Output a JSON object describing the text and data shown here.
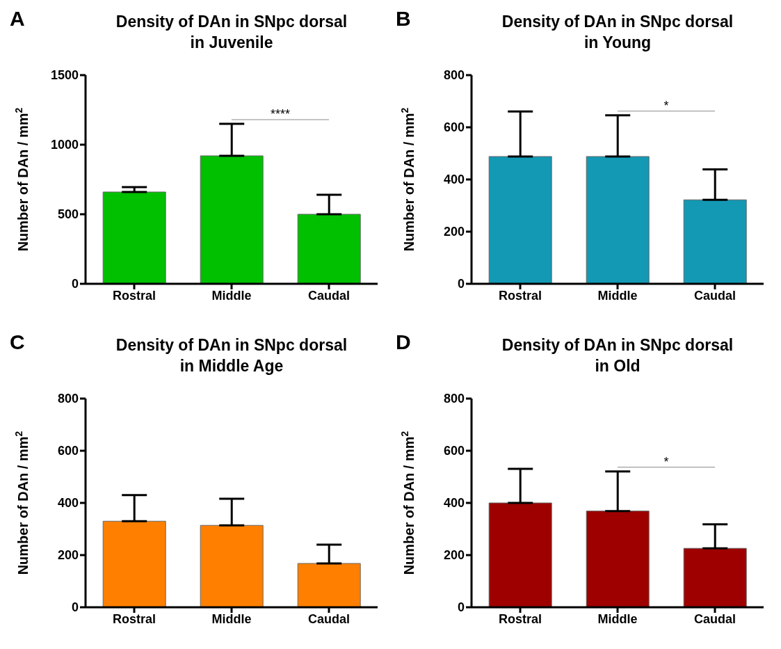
{
  "chart_data": [
    {
      "type": "bar",
      "title": "Density of DAn in SNpc dorsal in Juvenile",
      "ylabel": "Number of DAn / mm$^{2}$",
      "categories": [
        "Rostral",
        "Middle",
        "Caudal"
      ],
      "values": [
        660,
        920,
        500
      ],
      "errors": [
        35,
        230,
        140
      ],
      "color": "#00c000",
      "ylim": [
        0,
        1500
      ],
      "yticks": [
        0,
        500,
        1000,
        1500
      ],
      "annotations": [
        "A",
        "****"
      ]
    },
    {
      "type": "bar",
      "title": "Density of DAn in SNpc dorsal in Young",
      "ylabel": "Number of DAn / mm$^{2}$",
      "categories": [
        "Rostral",
        "Middle",
        "Caudal"
      ],
      "values": [
        488,
        488,
        322
      ],
      "errors": [
        173,
        158,
        117
      ],
      "color": "#1399b4",
      "ylim": [
        0,
        800
      ],
      "yticks": [
        0,
        200,
        400,
        600,
        800
      ],
      "annotations": [
        "B",
        "*"
      ]
    },
    {
      "type": "bar",
      "title": "Density of DAn in SNpc dorsal in Middle Age",
      "ylabel": "Number of DAn / mm$^{2}$",
      "categories": [
        "Rostral",
        "Middle",
        "Caudal"
      ],
      "values": [
        330,
        314,
        168
      ],
      "errors": [
        100,
        102,
        72
      ],
      "color": "#ff8000",
      "ylim": [
        0,
        800
      ],
      "yticks": [
        0,
        200,
        400,
        600,
        800
      ],
      "annotations": [
        "C"
      ]
    },
    {
      "type": "bar",
      "title": "Density of DAn in SNpc dorsal in Old",
      "ylabel": "Number of DAn / mm$^{2}$",
      "categories": [
        "Rostral",
        "Middle",
        "Caudal"
      ],
      "values": [
        400,
        369,
        226
      ],
      "errors": [
        131,
        152,
        92
      ],
      "color": "#9e0000",
      "ylim": [
        0,
        800
      ],
      "yticks": [
        0,
        200,
        400,
        600,
        800
      ],
      "annotations": [
        "D",
        "*"
      ]
    }
  ]
}
